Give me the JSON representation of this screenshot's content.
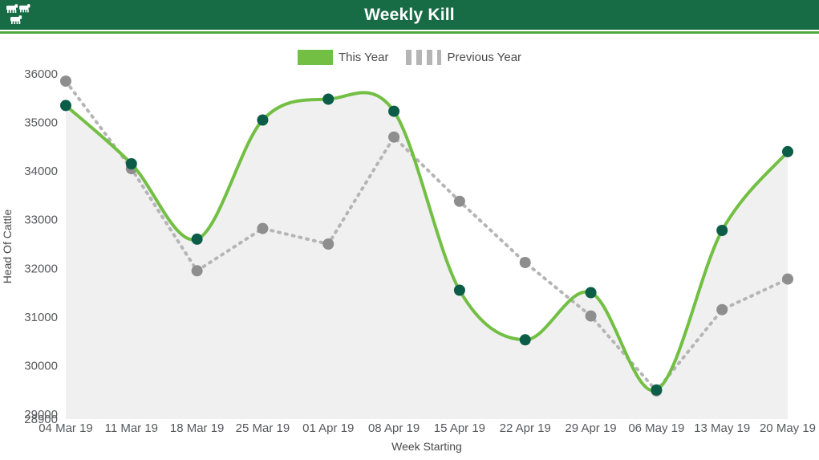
{
  "header": {
    "title": "Weekly Kill"
  },
  "colors": {
    "header_bg": "#176b45",
    "stripe": "#4fa83d",
    "area_fill": "#f0f0f0",
    "this_year_line": "#72bf44",
    "this_year_dot": "#0b5d48",
    "previous_year_line": "#b5b5b5",
    "previous_year_dot": "#8e8e8e"
  },
  "chart_data": {
    "type": "line",
    "title": "Weekly Kill",
    "xlabel": "Week Starting",
    "ylabel": "Head Of Cattle",
    "x": [
      "04 Mar 19",
      "11 Mar 19",
      "18 Mar 19",
      "25 Mar 19",
      "01 Apr 19",
      "08 Apr 19",
      "15 Apr 19",
      "22 Apr 19",
      "29 Apr 19",
      "06 May 19",
      "13 May 19",
      "20 May 19"
    ],
    "series": [
      {
        "name": "This Year",
        "color": "#72bf44",
        "dot_color": "#0b5d48",
        "dashed": false,
        "smooth": true,
        "area": true,
        "values": [
          35350,
          34150,
          32600,
          35050,
          35480,
          35230,
          31550,
          30530,
          31500,
          29500,
          32780,
          34400
        ]
      },
      {
        "name": "Previous Year",
        "color": "#b5b5b5",
        "dot_color": "#8e8e8e",
        "dashed": true,
        "smooth": false,
        "area": false,
        "values": [
          35850,
          34050,
          31950,
          32820,
          32500,
          34700,
          33380,
          32120,
          31020,
          29480,
          31150,
          31780
        ]
      }
    ],
    "ylim": [
      28900,
      36000
    ],
    "yticks": [
      36000,
      35000,
      34000,
      33000,
      32000,
      31000,
      30000,
      29000,
      28900
    ],
    "grid": false,
    "legend_position": "top-center"
  }
}
